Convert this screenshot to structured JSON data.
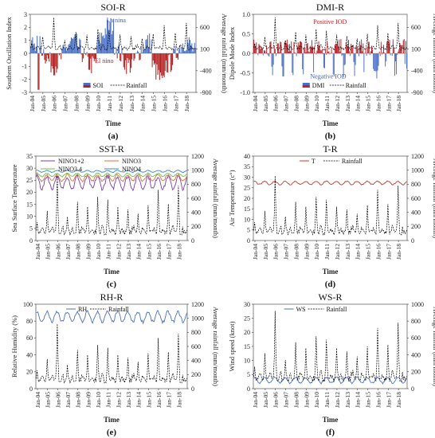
{
  "figure": {
    "x_tick_labels": [
      "Jan-04",
      "Jan-05",
      "Jan-06",
      "Jan-07",
      "Jan-08",
      "Jan-09",
      "Jan-10",
      "Jan-11",
      "Jan-12",
      "Jan-13",
      "Jan-14",
      "Jan-15",
      "Jan-16",
      "Jan-17",
      "Jan-18"
    ],
    "xlabel": "Time",
    "rainfall_series_name": "Rainfall",
    "colors": {
      "soi": "#b51f1f",
      "soi_pos": "#4a6fc7",
      "dmi": "#c0232b",
      "dmi_neg": "#4a6fc7",
      "rainfall": "#000000",
      "nino12": "#7a3fb5",
      "nino3": "#e0703a",
      "nino34": "#6cc24a",
      "nino4": "#3b86c8",
      "t": "#c0392b",
      "rh": "#4a72c4",
      "ws": "#4a72c4"
    }
  },
  "chart_data": [
    {
      "id": "a",
      "type": "bar",
      "title": "SOI-R",
      "panel_label": "(a)",
      "xlabel": "Time",
      "ylabel": "Southern Oscillation Index",
      "y2label": "Average rainfall (mm/month)",
      "ylim": [
        -3,
        3
      ],
      "yticks": [
        -3,
        -2,
        -1,
        0,
        1,
        2,
        3
      ],
      "y2lim": [
        -900,
        900
      ],
      "y2ticks": [
        -900,
        -400,
        100,
        600
      ],
      "legend": [
        "SOI",
        "Rainfall"
      ],
      "annotations": [
        "La nina",
        "El nino"
      ],
      "series": [
        {
          "name": "SOI",
          "kind": "soi"
        },
        {
          "name": "Rainfall",
          "kind": "rain",
          "scale": 900
        }
      ]
    },
    {
      "id": "b",
      "type": "bar",
      "title": "DMI-R",
      "panel_label": "(b)",
      "xlabel": "Time",
      "ylabel": "Dipole Mode Index",
      "y2label": "Average rainfall (mm/month)",
      "ylim": [
        -1,
        1
      ],
      "yticks": [
        -1.0,
        -0.5,
        0.0,
        0.5,
        1.0
      ],
      "y2lim": [
        -900,
        900
      ],
      "y2ticks": [
        -900,
        -400,
        100,
        600
      ],
      "legend": [
        "DMI",
        "Rainfall"
      ],
      "annotations": [
        "Positive IOD",
        "Negative IOD"
      ],
      "series": [
        {
          "name": "DMI",
          "kind": "dmi"
        },
        {
          "name": "Rainfall",
          "kind": "rain",
          "scale": 900
        }
      ]
    },
    {
      "id": "c",
      "type": "line",
      "title": "SST-R",
      "panel_label": "(c)",
      "xlabel": "Time",
      "ylabel": "Sea Surface Temperature",
      "y2label": "Average rainfall (mm/month)",
      "ylim": [
        0,
        35
      ],
      "yticks": [
        0,
        5,
        10,
        15,
        20,
        25,
        30,
        35
      ],
      "y2lim": [
        0,
        1200
      ],
      "y2ticks": [
        0,
        200,
        400,
        600,
        800,
        1000,
        1200
      ],
      "legend": [
        "NINO1+2",
        "NINO3",
        "NINO3.4",
        "NINO4"
      ],
      "series": [
        {
          "name": "NINO1+2",
          "kind": "sst",
          "mean": 24.0,
          "amp": 2.6
        },
        {
          "name": "NINO3",
          "kind": "sst",
          "mean": 26.0,
          "amp": 1.3
        },
        {
          "name": "NINO3.4",
          "kind": "sst",
          "mean": 27.2,
          "amp": 0.7
        },
        {
          "name": "NINO4",
          "kind": "sst",
          "mean": 28.7,
          "amp": 0.4
        },
        {
          "name": "Rainfall",
          "kind": "rain",
          "scale": 1000
        }
      ]
    },
    {
      "id": "d",
      "type": "line",
      "title": "T-R",
      "panel_label": "(d)",
      "xlabel": "Time",
      "ylabel": "Air Temperature (c°)",
      "y2label": "Average rainfall (mm/month)",
      "ylim": [
        0,
        40
      ],
      "yticks": [
        0,
        5,
        10,
        15,
        20,
        25,
        30,
        35,
        40
      ],
      "y2lim": [
        0,
        1200
      ],
      "y2ticks": [
        0,
        200,
        400,
        600,
        800,
        1000,
        1200
      ],
      "legend": [
        "T",
        "Rainfall"
      ],
      "series": [
        {
          "name": "T",
          "kind": "temp",
          "mean": 27.3,
          "amp": 0.8
        },
        {
          "name": "Rainfall",
          "kind": "rain",
          "scale": 1000
        }
      ]
    },
    {
      "id": "e",
      "type": "line",
      "title": "RH-R",
      "panel_label": "(e)",
      "xlabel": "Time",
      "ylabel": "Relative Humidity (%)",
      "y2label": "Average rainfall (mm/month)",
      "ylim": [
        0,
        100
      ],
      "yticks": [
        0,
        20,
        40,
        60,
        80,
        100
      ],
      "y2lim": [
        0,
        1200
      ],
      "y2ticks": [
        0,
        200,
        400,
        600,
        800,
        1000,
        1200
      ],
      "legend": [
        "RH",
        "Rainfall"
      ],
      "series": [
        {
          "name": "RH",
          "kind": "rh",
          "mean": 85,
          "amp": 6
        },
        {
          "name": "Rainfall",
          "kind": "rain",
          "scale": 1000
        }
      ]
    },
    {
      "id": "f",
      "type": "line",
      "title": "WS-R",
      "panel_label": "(f)",
      "xlabel": "Time",
      "ylabel": "Wind speed (knot)",
      "y2label": "Average rainfall (mm/month)",
      "ylim": [
        0,
        30
      ],
      "yticks": [
        0,
        5,
        10,
        15,
        20,
        25,
        30
      ],
      "y2lim": [
        0,
        1000
      ],
      "y2ticks": [
        0,
        200,
        400,
        600,
        800,
        1000
      ],
      "legend": [
        "WS",
        "Rainfall"
      ],
      "series": [
        {
          "name": "WS",
          "kind": "ws",
          "mean": 3.0,
          "amp": 1.0
        },
        {
          "name": "Rainfall",
          "kind": "rain",
          "scale": 1000
        }
      ]
    }
  ]
}
